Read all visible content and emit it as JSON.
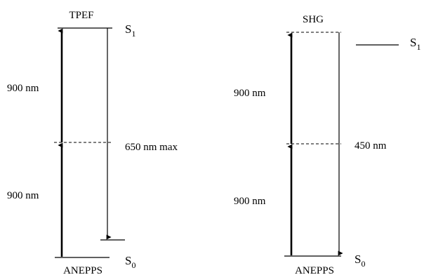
{
  "tpef": {
    "title": "TPEF",
    "upper_state": "S",
    "upper_sub": "1",
    "ground_state": "S",
    "ground_sub": "0",
    "molecule": "ANEPPS",
    "excitation_1": "900 nm",
    "excitation_2": "900 nm",
    "emission": "650 nm max"
  },
  "shg": {
    "title": "SHG",
    "upper_state": "S",
    "upper_sub": "1",
    "ground_state": "S",
    "ground_sub": "0",
    "molecule": "ANEPPS",
    "excitation_1": "900 nm",
    "excitation_2": "900 nm",
    "emission": "450 nm"
  }
}
